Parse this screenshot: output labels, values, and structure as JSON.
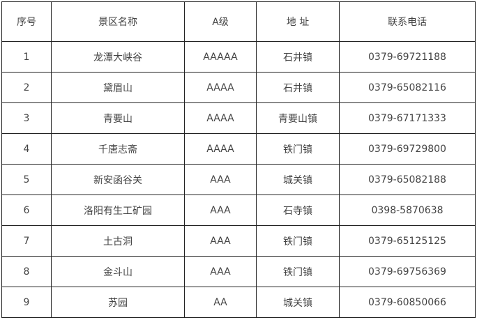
{
  "table": {
    "headers": [
      "序号",
      "景区名称",
      "A级",
      "地 址",
      "联系电话"
    ],
    "rows": [
      [
        "1",
        "龙潭大峡谷",
        "AAAAA",
        "石井镇",
        "0379-69721188"
      ],
      [
        "2",
        "黛眉山",
        "AAAA",
        "石井镇",
        "0379-65082116"
      ],
      [
        "3",
        "青要山",
        "AAAA",
        "青要山镇",
        "0379-67171333"
      ],
      [
        "4",
        "千唐志斋",
        "AAAA",
        "铁门镇",
        "0379-69729800"
      ],
      [
        "5",
        "新安函谷关",
        "AAA",
        "城关镇",
        "0379-65082188"
      ],
      [
        "6",
        "洛阳有生工矿园",
        "AAA",
        "石寺镇",
        "0398-5870638"
      ],
      [
        "7",
        "土古洞",
        "AAA",
        "铁门镇",
        "0379-65125125"
      ],
      [
        "8",
        "金斗山",
        "AAA",
        "铁门镇",
        "0379-69756369"
      ],
      [
        "9",
        "苏园",
        "AA",
        "城关镇",
        "0379-60850066"
      ]
    ]
  }
}
